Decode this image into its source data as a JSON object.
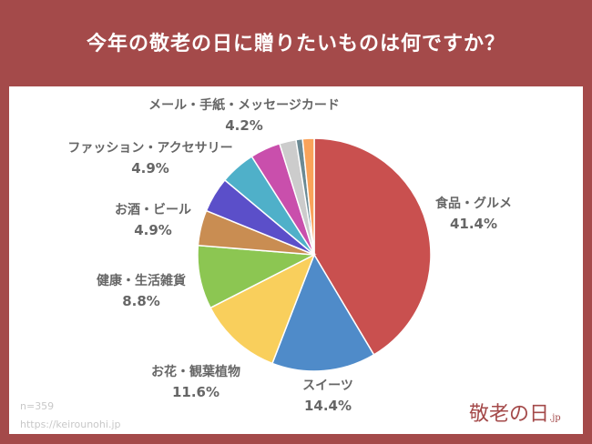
{
  "title": "今年の敬老の日に贈りたいものは何ですか？",
  "footer": {
    "n": "n=359",
    "url": "https://keirounohi.jp",
    "logo": "敬老の日.jp"
  },
  "chart_data": {
    "type": "pie",
    "title": "今年の敬老の日に贈りたいものは何ですか？",
    "slices": [
      {
        "label": "食品・グルメ",
        "value": 41.4,
        "display": "41.4%",
        "color": "#c9504f"
      },
      {
        "label": "スイーツ",
        "value": 14.4,
        "display": "14.4%",
        "color": "#4f8bc9"
      },
      {
        "label": "お花・観葉植物",
        "value": 11.6,
        "display": "11.6%",
        "color": "#f9cf5c"
      },
      {
        "label": "健康・生活雑貨",
        "value": 8.8,
        "display": "8.8%",
        "color": "#8cc652"
      },
      {
        "label": "お酒・ビール",
        "value": 4.9,
        "display": "4.9%",
        "color": "#c98d52"
      },
      {
        "label": "",
        "value": 4.9,
        "display": "",
        "color": "#5b4fc9"
      },
      {
        "label": "ファッション・アクセサリー",
        "value": 4.9,
        "display": "4.9%",
        "color": "#4fb0c9"
      },
      {
        "label": "メール・手紙・メッセージカード",
        "value": 4.2,
        "display": "4.2%",
        "color": "#c94fac"
      },
      {
        "label": "",
        "value": 2.3,
        "display": "",
        "color": "#cccccc"
      },
      {
        "label": "",
        "value": 0.9,
        "display": "",
        "color": "#6b8a94"
      },
      {
        "label": "",
        "value": 1.6,
        "display": "",
        "color": "#f9a35a"
      }
    ]
  }
}
